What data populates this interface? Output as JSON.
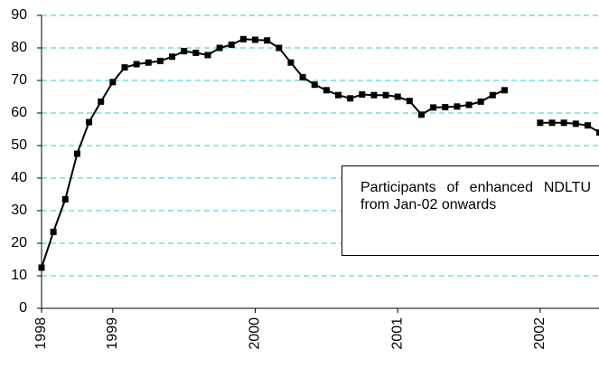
{
  "chart_data": {
    "type": "line",
    "categories": [
      "1998",
      null,
      null,
      null,
      null,
      null,
      "1999",
      null,
      null,
      null,
      null,
      null,
      null,
      null,
      null,
      null,
      null,
      null,
      "2000",
      null,
      null,
      null,
      null,
      null,
      null,
      null,
      null,
      null,
      null,
      null,
      "2001",
      null,
      null,
      null,
      null,
      null,
      null,
      null,
      null,
      null,
      null,
      null,
      "2002",
      null,
      null,
      null,
      null,
      null
    ],
    "series": [
      {
        "color": "#000000",
        "values": [
          12.5,
          23.5,
          33.5,
          47.5,
          57.2,
          63.5,
          69.5,
          74,
          75,
          75.5,
          76,
          77.3,
          79,
          78.5,
          77.8,
          80,
          81,
          82.7,
          82.5,
          82.3,
          80,
          75.5,
          71,
          68.7,
          67,
          65.5,
          64.5,
          65.7,
          65.5,
          65.5,
          65,
          63.7,
          59.5,
          61.7,
          61.8,
          62,
          62.5,
          63.5,
          65.5,
          67,
          null,
          null,
          57,
          57,
          57,
          56.7,
          56.2,
          54
        ]
      }
    ],
    "ylim": [
      0,
      90
    ],
    "yticks": [
      0,
      10,
      20,
      30,
      40,
      50,
      60,
      70,
      80,
      90
    ],
    "grid": true,
    "annotation": "Participants of enhanced NDLTU from Jan-02 onwards"
  }
}
